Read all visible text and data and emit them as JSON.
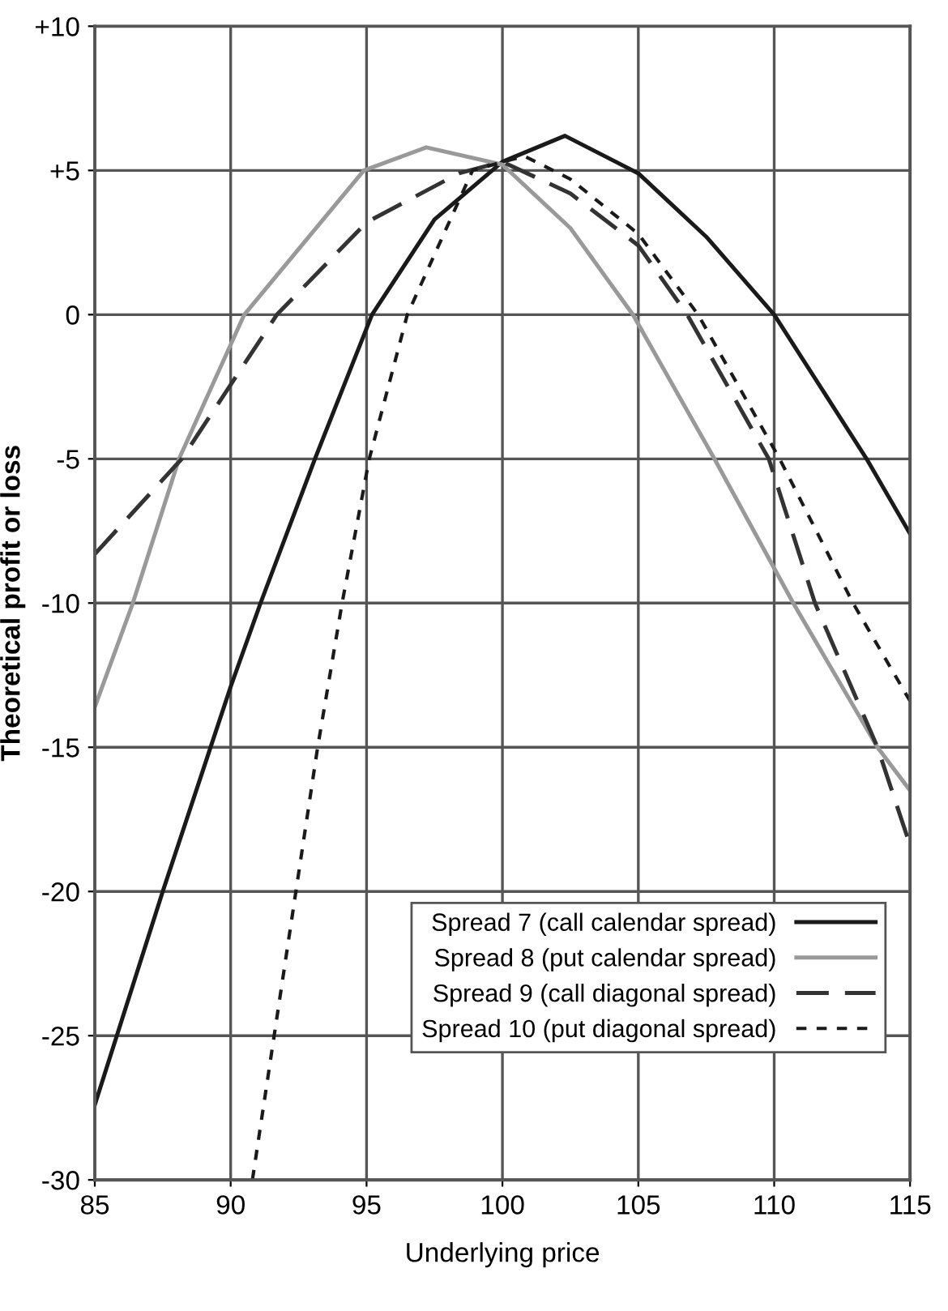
{
  "chart_data": {
    "type": "line",
    "xlabel": "Underlying price",
    "ylabel": "Theoretical profit or loss",
    "xlim": [
      85,
      115
    ],
    "xticks": [
      85,
      90,
      95,
      100,
      105,
      110,
      115
    ],
    "ylim": [
      -30,
      10
    ],
    "yticks": [
      {
        "value": 10,
        "label": "+10"
      },
      {
        "value": 5,
        "label": "+5"
      },
      0,
      -5,
      -10,
      -15,
      -20,
      -25,
      -30
    ],
    "grid": true,
    "legend": "bottom right",
    "marker": "none",
    "series": [
      {
        "name": "Spread 7 (call calendar spread)",
        "color": "#1a1a1a",
        "line_style": "solid",
        "x": [
          85,
          87.5,
          90,
          91.1,
          93.1,
          95.2,
          97.5,
          100,
          102.3,
          105,
          107.5,
          110,
          113.4,
          115
        ],
        "values": [
          -27.4,
          -20,
          -12.9,
          -10,
          -5,
          0,
          3.3,
          5.3,
          6.2,
          4.9,
          2.7,
          0,
          -5,
          -7.6
        ]
      },
      {
        "name": "Spread 8 (put calendar spread)",
        "color": "#999999",
        "line_style": "solid",
        "x": [
          85,
          86.4,
          88.1,
          90.5,
          94.9,
          97.2,
          100,
          102.5,
          104.8,
          107.8,
          110.7,
          113.8,
          115
        ],
        "values": [
          -13.6,
          -10,
          -5,
          0,
          5,
          5.8,
          5.2,
          3.0,
          0,
          -5,
          -10,
          -15,
          -16.5
        ]
      },
      {
        "name": "Spread 9 (call diagonal spread)",
        "color": "#333333",
        "line_style": "dashed",
        "x": [
          85,
          88.2,
          91.7,
          95,
          98.4,
          100,
          102.5,
          105,
          106.8,
          109.8,
          111.5,
          113.8,
          115
        ],
        "values": [
          -8.3,
          -5,
          0,
          3.2,
          4.9,
          5.3,
          4.2,
          2.4,
          0,
          -5,
          -10,
          -15,
          -18.4
        ]
      },
      {
        "name": "Spread 10 (put diagonal spread)",
        "color": "#1a1a1a",
        "line_style": "dotted",
        "x": [
          90.8,
          91.6,
          92.4,
          93.2,
          94.1,
          95.1,
          96.5,
          98.9,
          100.8,
          102.5,
          105,
          107.2,
          110.2,
          112.9,
          115
        ],
        "values": [
          -30,
          -25,
          -20,
          -15,
          -10,
          -5,
          0,
          5,
          5.5,
          4.7,
          2.8,
          0,
          -5,
          -10,
          -13.4
        ]
      }
    ]
  }
}
